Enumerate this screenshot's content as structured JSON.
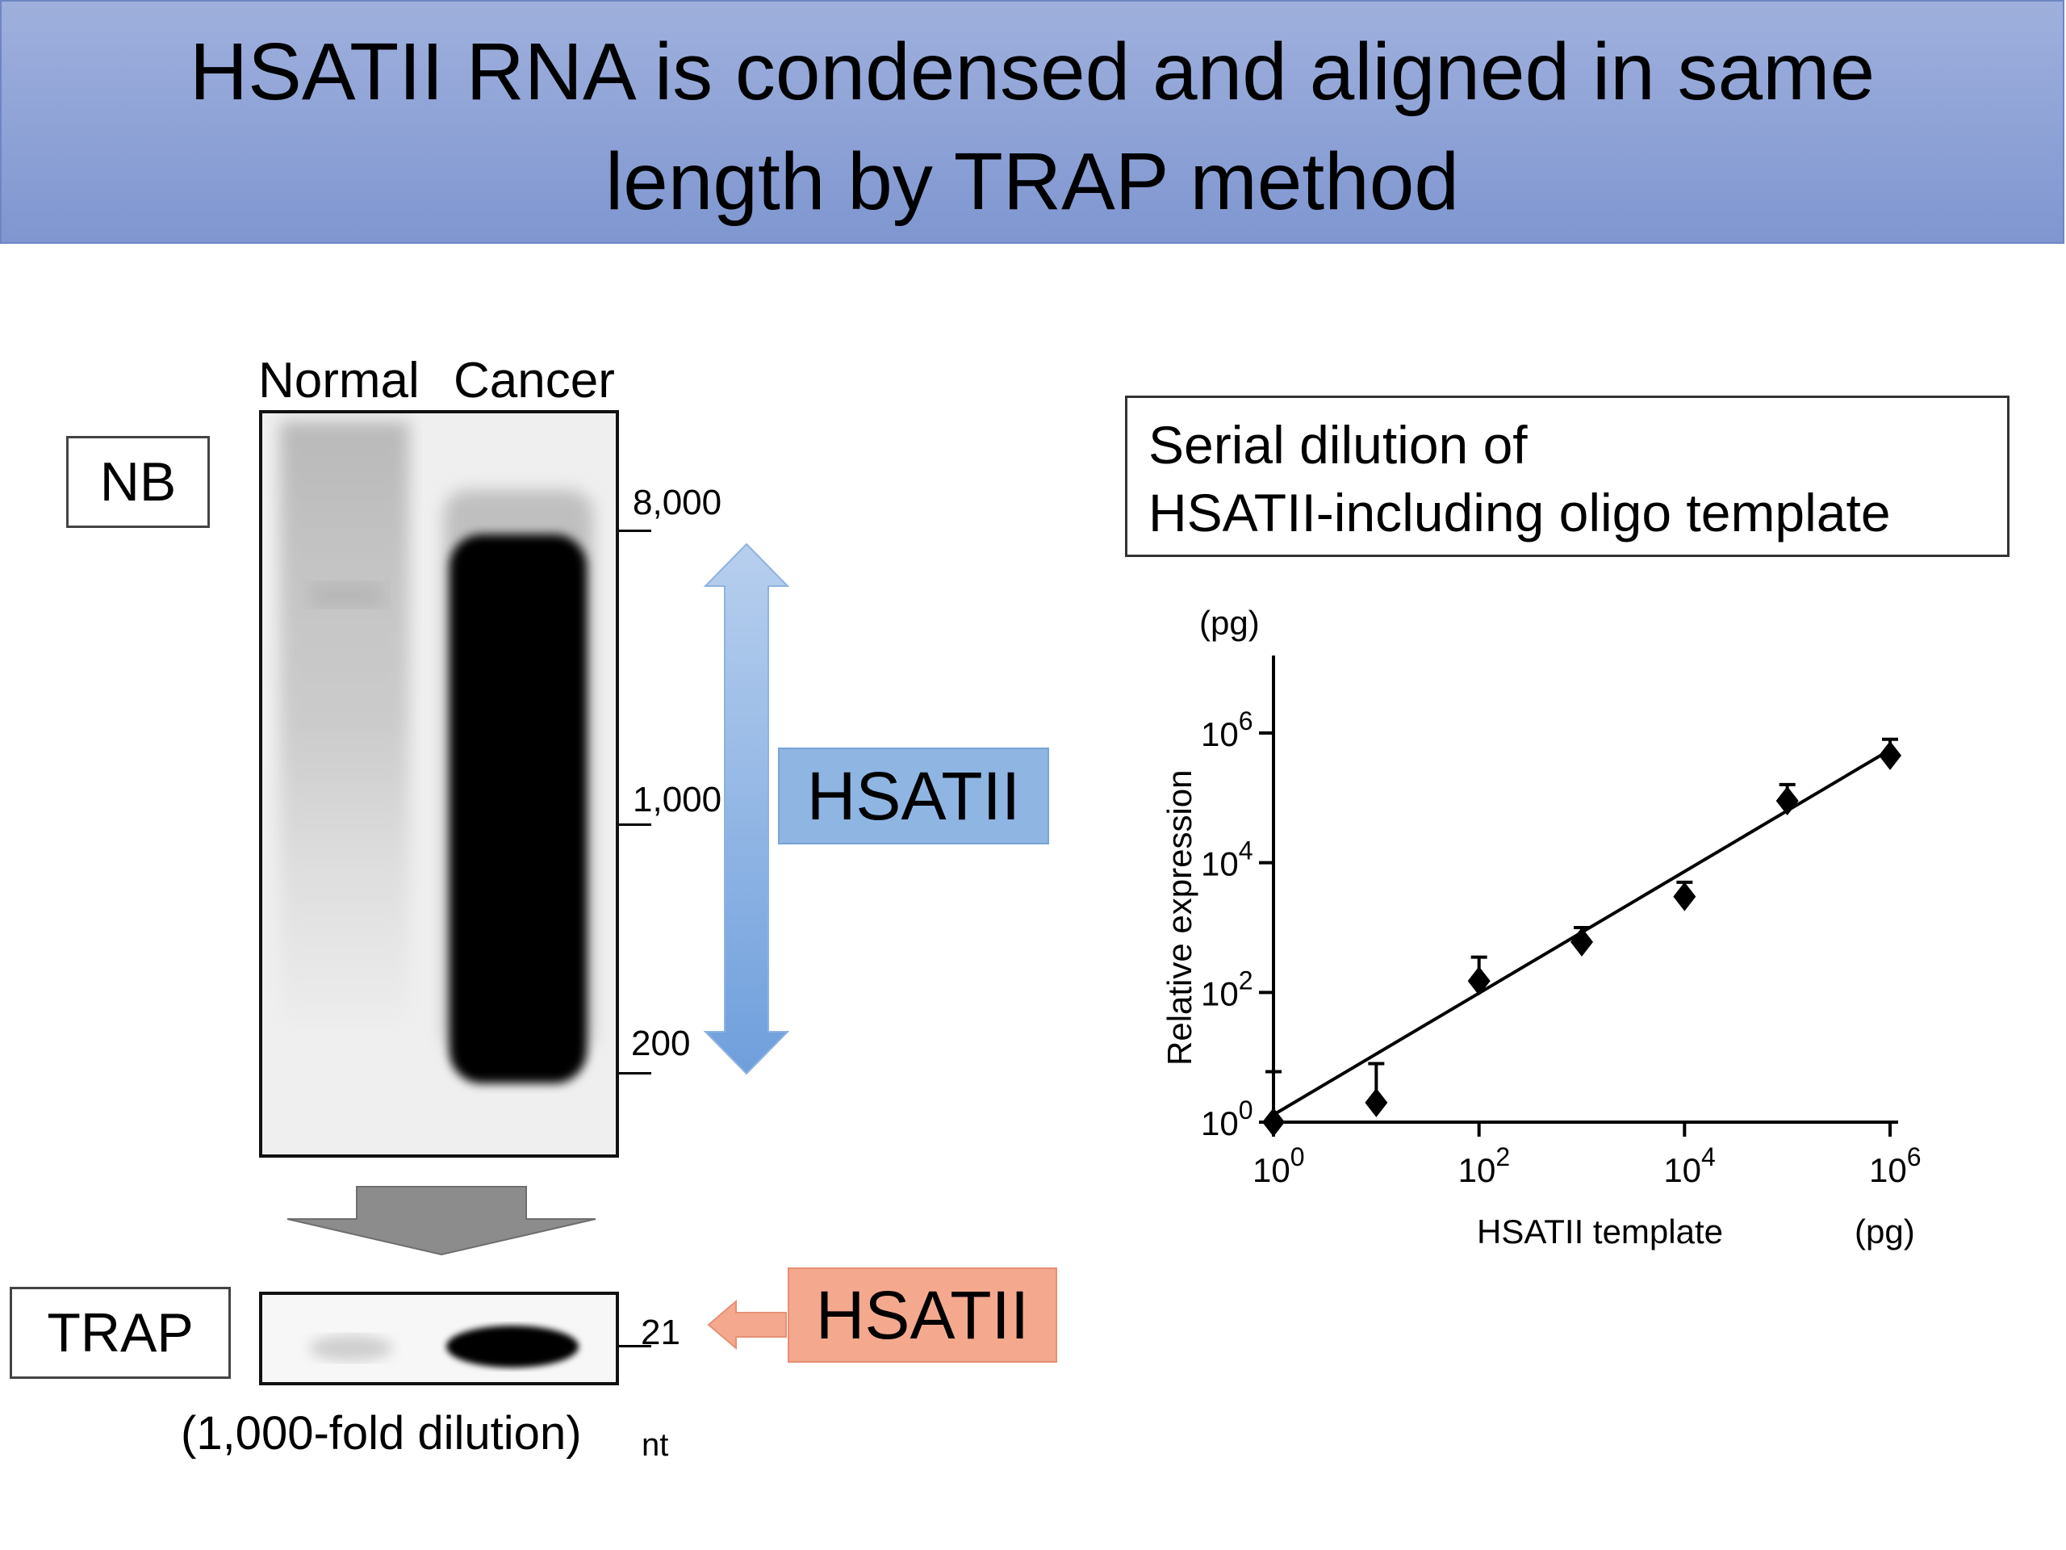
{
  "slide": {
    "title_line_1": "HSATII RNA is condensed and aligned in same",
    "title_line_2": "length by TRAP method",
    "accent_title_bg": "#8fa3d6"
  },
  "blot": {
    "lane_labels": [
      "Normal",
      "Cancer"
    ],
    "nb_label": "NB",
    "trap_label": "TRAP",
    "size_markers": [
      "8,000",
      "1,000",
      "200"
    ],
    "trap_marker": "21",
    "unit": "nt",
    "dilution_note": "(1,000-fold dilution)",
    "hsatii_blue_label": "HSATII",
    "hsatii_orange_label": "HSATII",
    "blue_color": "#8fb5e3",
    "orange_color": "#f4a98f",
    "arrow_icon": "double-headed-vertical-arrow",
    "down_arrow_icon": "down-arrow",
    "left_arrow_icon": "left-arrow"
  },
  "chart_caption": {
    "line_1": "Serial dilution of",
    "line_2": "HSATII-including oligo template"
  },
  "chart_data": {
    "type": "scatter",
    "xlabel": "HSATII template",
    "x_unit": "(pg)",
    "ylabel": "Relative expression",
    "y_unit": "(pg)",
    "x_scale": "log",
    "y_scale": "log",
    "xlim": [
      1,
      1000000
    ],
    "ylim": [
      1,
      1000000
    ],
    "x_ticks": [
      {
        "base": "10",
        "exp": "0",
        "value": 1
      },
      {
        "base": "10",
        "exp": "2",
        "value": 100
      },
      {
        "base": "10",
        "exp": "4",
        "value": 10000
      },
      {
        "base": "10",
        "exp": "6",
        "value": 1000000
      }
    ],
    "y_ticks": [
      {
        "base": "10",
        "exp": "0",
        "value": 1
      },
      {
        "base": "10",
        "exp": "2",
        "value": 100
      },
      {
        "base": "10",
        "exp": "4",
        "value": 10000
      },
      {
        "base": "10",
        "exp": "6",
        "value": 1000000
      }
    ],
    "points": [
      {
        "x": 1,
        "y": 1,
        "err_high": 6
      },
      {
        "x": 10,
        "y": 2,
        "err_high": 8
      },
      {
        "x": 100,
        "y": 150,
        "err_high": 350
      },
      {
        "x": 1000,
        "y": 600,
        "err_high": 1000
      },
      {
        "x": 10000,
        "y": 3000,
        "err_high": 5000
      },
      {
        "x": 100000,
        "y": 90000,
        "err_high": 160000
      },
      {
        "x": 1000000,
        "y": 450000,
        "err_high": 800000
      }
    ],
    "fit_line": [
      {
        "x": 1,
        "y": 1.3
      },
      {
        "x": 1000000,
        "y": 550000
      }
    ],
    "grid": false,
    "legend": "none"
  }
}
